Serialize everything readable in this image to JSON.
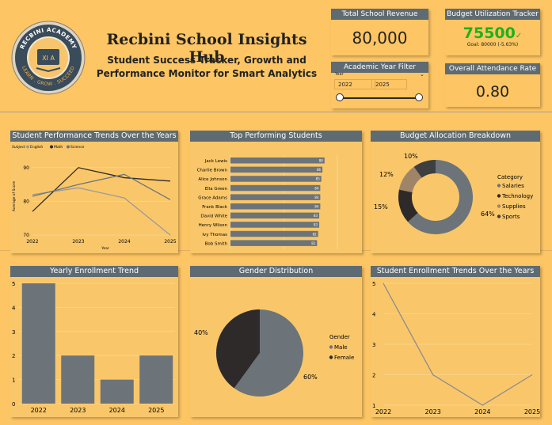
{
  "header": {
    "logo_top": "RECBINI ACADEMY",
    "logo_bottom": "LEARN . GROW . SUCCEED",
    "logo_mark": "XI A",
    "title": "Recbini School Insights Hub",
    "subtitle_line1": "Student Success Tracker, Growth and",
    "subtitle_line2": "Performance Monitor for Smart Analytics"
  },
  "kpis": {
    "revenue": {
      "label": "Total School Revenue",
      "value": "80,000"
    },
    "budget": {
      "label": "Budget Utilization Tracker",
      "value": "75500",
      "check": "✓",
      "goal": "Goal: 80000 (-5.63%)"
    },
    "year_filter": {
      "label": "Academic Year Filter",
      "field": "Year",
      "from": "2022",
      "to": "2025"
    },
    "attendance": {
      "label": "Overall Attendance Rate",
      "value": "0.80"
    }
  },
  "colors": {
    "accent": "#5f6b72",
    "bg": "#fdc563",
    "dark": "#2f2a2a",
    "mid": "#8c8c8c",
    "green": "#1db21d"
  },
  "chart_data": [
    {
      "id": "performance",
      "type": "line",
      "title": "Student Performance Trends Over the Years",
      "legend_title": "Subject",
      "xlabel": "Year",
      "ylabel": "Average of Score",
      "categories": [
        "2022",
        "2023",
        "2024",
        "2025"
      ],
      "ylim": [
        70,
        93
      ],
      "yticks": [
        "70",
        "80",
        "90"
      ],
      "series": [
        {
          "name": "English",
          "color": "#9a9a9a",
          "values": [
            82,
            84,
            81,
            70
          ]
        },
        {
          "name": "Math",
          "color": "#2f2a2a",
          "values": [
            77,
            90,
            87,
            86
          ]
        },
        {
          "name": "Science",
          "color": "#6c747a",
          "values": [
            81.5,
            85,
            88,
            80.5
          ]
        }
      ]
    },
    {
      "id": "top_students",
      "type": "bar",
      "title": "Top Performing Students",
      "categories": [
        "Jack Lewis",
        "Charlie Brown",
        "Alice Johnson",
        "Ella Green",
        "Grace Adams",
        "Frank Black",
        "David White",
        "Henry Wilson",
        "Ivy Thomas",
        "Bob Smith"
      ],
      "values": [
        88,
        86,
        85,
        84,
        84,
        84,
        83,
        83,
        82,
        81
      ],
      "xlim": [
        0,
        100
      ],
      "xticks": [
        "0",
        "50",
        "100"
      ],
      "value_labels": [
        "88",
        "86",
        "85",
        "84",
        "84",
        "84",
        "83",
        "83",
        "82",
        "81"
      ]
    },
    {
      "id": "budget_alloc",
      "type": "pie",
      "title": "Budget Allocation Breakdown",
      "legend_title": "Category",
      "labels": [
        "Salaries",
        "Technology",
        "Supplies",
        "Sports"
      ],
      "values": [
        64,
        15,
        12,
        10
      ],
      "value_labels": [
        "64%",
        "15%",
        "12%",
        "10%"
      ],
      "colors": [
        "#6c747a",
        "#2f2a2a",
        "#a08468",
        "#3d3f40"
      ]
    },
    {
      "id": "yearly_enrollment",
      "type": "bar",
      "title": "Yearly Enrollment Trend",
      "categories": [
        "2022",
        "2023",
        "2024",
        "2025"
      ],
      "values": [
        5,
        2,
        1,
        2
      ],
      "ylim": [
        0,
        5
      ],
      "yticks": [
        "0",
        "1",
        "2",
        "3",
        "4",
        "5"
      ]
    },
    {
      "id": "gender",
      "type": "pie",
      "title": "Gender Distribution",
      "legend_title": "Gender",
      "labels": [
        "Male",
        "Female"
      ],
      "values": [
        60,
        40
      ],
      "value_labels": [
        "60%",
        "40%"
      ],
      "colors": [
        "#6c747a",
        "#2f2a2a"
      ]
    },
    {
      "id": "enrollment_trend",
      "type": "line",
      "title": "Student Enrollment Trends Over the Years",
      "categories": [
        "2022",
        "2023",
        "2024",
        "2025"
      ],
      "values": [
        5,
        2,
        1,
        2
      ],
      "ylim": [
        1,
        5
      ],
      "yticks": [
        "1",
        "2",
        "3",
        "4",
        "5"
      ]
    }
  ]
}
